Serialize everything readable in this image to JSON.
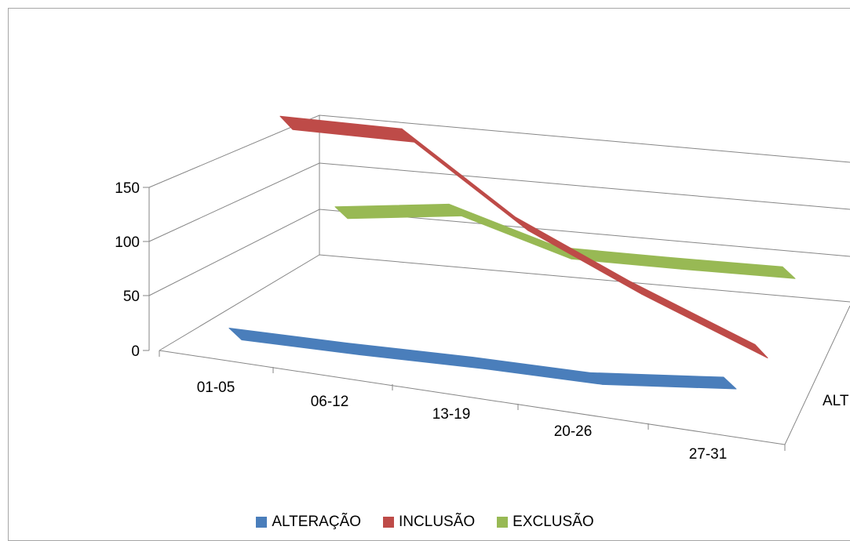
{
  "chart_data": {
    "type": "line",
    "variant": "3d",
    "title": "",
    "xlabel": "",
    "ylabel": "",
    "categories": [
      "01-05",
      "06-12",
      "13-19",
      "20-26",
      "27-31"
    ],
    "ylim": [
      0,
      150
    ],
    "yticks": [
      "0",
      "50",
      "100",
      "150"
    ],
    "depth_axis_label": "ALT",
    "grid": true,
    "legend": "bottom",
    "series": [
      {
        "name": "ALTERAÇÃO",
        "color": "#4a7ebb",
        "values": [
          7,
          7,
          7,
          5,
          8
        ]
      },
      {
        "name": "INCLUSÃO",
        "color": "#be4b48",
        "values": [
          140,
          140,
          80,
          35,
          0
        ]
      },
      {
        "name": "EXCLUSÃO",
        "color": "#98b954",
        "values": [
          60,
          70,
          40,
          40,
          40
        ]
      }
    ]
  }
}
